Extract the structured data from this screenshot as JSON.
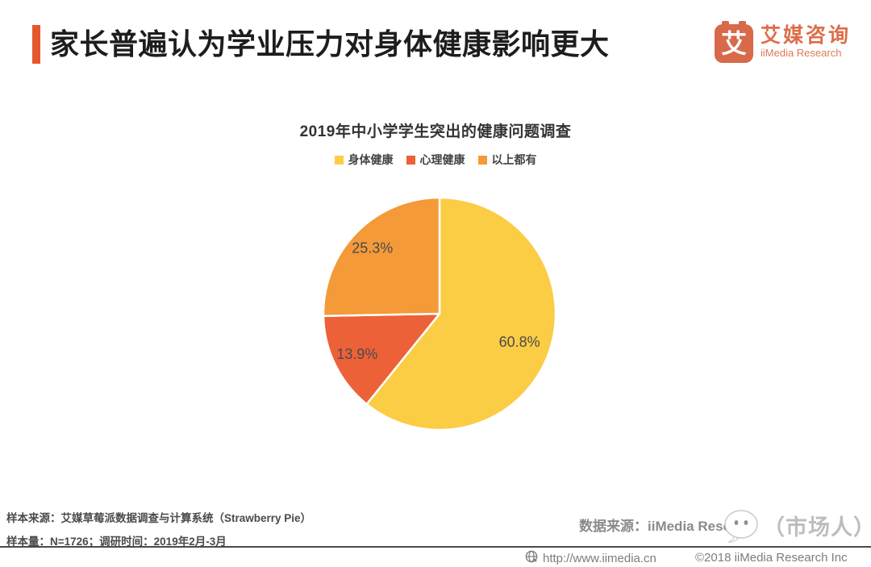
{
  "header": {
    "title": "家长普遍认为学业压力对身体健康影响更大",
    "logo": {
      "mark": "艾",
      "name_cn": "艾媒咨询",
      "name_en": "iiMedia Research"
    }
  },
  "chart_data": {
    "type": "pie",
    "title": "2019年中小学学生突出的健康问题调查",
    "legend_position": "top",
    "direction": "clockwise",
    "start_angle_deg": 0,
    "series": [
      {
        "name": "身体健康",
        "value": 60.8,
        "label": "60.8%",
        "color": "#FBCD45",
        "label_radius": 0.73
      },
      {
        "name": "心理健康",
        "value": 13.9,
        "label": "13.9%",
        "color": "#ED6138",
        "label_radius": 0.79
      },
      {
        "name": "以上都有",
        "value": 25.3,
        "label": "25.3%",
        "color": "#F49A38",
        "label_radius": 0.81
      }
    ]
  },
  "footnotes": {
    "sample_source": "样本来源：艾媒草莓派数据调查与计算系统（Strawberry Pie）",
    "sample_size": "样本量：N=1726；调研时间：2019年2月-3月",
    "data_source_prefix": "数据来源：iiMedia Resea"
  },
  "watermark": {
    "label": "（市场人）"
  },
  "footer": {
    "url": "http://www.iimedia.cn",
    "copyright": "©2018 iiMedia Research Inc"
  },
  "colors": {
    "accent_orange": "#E4582E",
    "logo_orange": "#D8694A",
    "pie_yellow": "#FBCD45",
    "pie_red": "#ED6138",
    "pie_orange": "#F49A38",
    "divider_gray": "#4A4A4A"
  }
}
